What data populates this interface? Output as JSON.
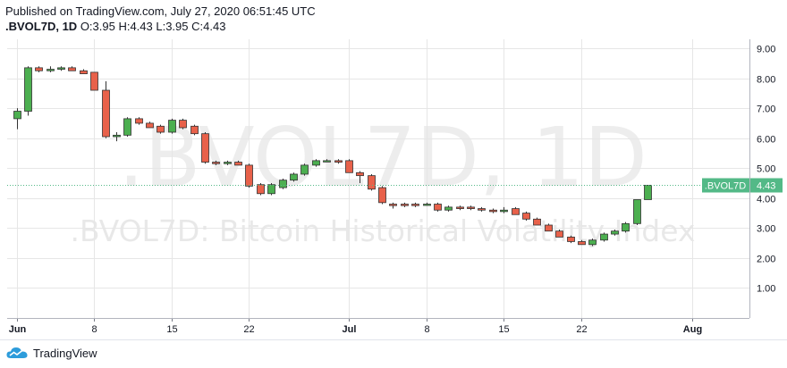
{
  "header": {
    "published": "Published on TradingView.com, July 27, 2020 06:51:45 UTC",
    "symbol": ".BVOL7D, 1D",
    "ohlc": "O:3.95 H:4.43 L:3.95 C:4.43"
  },
  "watermark": {
    "line1": ".BVOL7D, 1D",
    "line2": ".BVOL7D: Bitcoin Historical Volatility Index"
  },
  "footer": {
    "brand": "TradingView"
  },
  "colors": {
    "up": "#53b987",
    "down": "#eb4d5c",
    "up_fill": "#4caf50",
    "down_fill": "#e8614a",
    "last_price_label": "#53b987",
    "grid": "#e6e6e6"
  },
  "chart_data": {
    "type": "candlestick",
    "title": "",
    "symbol": ".BVOL7D",
    "interval": "1D",
    "ylim": [
      0,
      9.3
    ],
    "y_ticks": [
      "1.00",
      "2.00",
      "3.00",
      "4.00",
      "5.00",
      "6.00",
      "7.00",
      "8.00",
      "9.00"
    ],
    "x_ticks": [
      "Jun",
      "8",
      "15",
      "22",
      "Jul",
      "8",
      "15",
      "22",
      "Aug"
    ],
    "last_price": {
      "label": ".BVOL7D",
      "value": "4.43"
    },
    "grid": true,
    "candles": [
      {
        "date": "Jun 1",
        "o": 6.65,
        "h": 7.0,
        "l": 6.3,
        "c": 6.9
      },
      {
        "date": "Jun 2",
        "o": 6.9,
        "h": 8.4,
        "l": 6.75,
        "c": 8.35
      },
      {
        "date": "Jun 3",
        "o": 8.35,
        "h": 8.4,
        "l": 8.2,
        "c": 8.25
      },
      {
        "date": "Jun 4",
        "o": 8.25,
        "h": 8.4,
        "l": 8.2,
        "c": 8.3
      },
      {
        "date": "Jun 5",
        "o": 8.3,
        "h": 8.4,
        "l": 8.25,
        "c": 8.35
      },
      {
        "date": "Jun 6",
        "o": 8.35,
        "h": 8.4,
        "l": 8.25,
        "c": 8.25
      },
      {
        "date": "Jun 7",
        "o": 8.25,
        "h": 8.3,
        "l": 8.15,
        "c": 8.15
      },
      {
        "date": "Jun 8",
        "o": 8.2,
        "h": 8.2,
        "l": 7.6,
        "c": 7.6
      },
      {
        "date": "Jun 9",
        "o": 7.6,
        "h": 7.9,
        "l": 6.0,
        "c": 6.05
      },
      {
        "date": "Jun 10",
        "o": 6.05,
        "h": 6.2,
        "l": 5.9,
        "c": 6.1
      },
      {
        "date": "Jun 11",
        "o": 6.1,
        "h": 6.7,
        "l": 6.05,
        "c": 6.65
      },
      {
        "date": "Jun 12",
        "o": 6.65,
        "h": 6.7,
        "l": 6.45,
        "c": 6.5
      },
      {
        "date": "Jun 13",
        "o": 6.5,
        "h": 6.55,
        "l": 6.35,
        "c": 6.35
      },
      {
        "date": "Jun 14",
        "o": 6.4,
        "h": 6.45,
        "l": 6.15,
        "c": 6.2
      },
      {
        "date": "Jun 15",
        "o": 6.2,
        "h": 6.65,
        "l": 6.15,
        "c": 6.6
      },
      {
        "date": "Jun 16",
        "o": 6.6,
        "h": 6.65,
        "l": 6.3,
        "c": 6.35
      },
      {
        "date": "Jun 17",
        "o": 6.4,
        "h": 6.45,
        "l": 6.1,
        "c": 6.15
      },
      {
        "date": "Jun 18",
        "o": 6.15,
        "h": 6.2,
        "l": 5.15,
        "c": 5.2
      },
      {
        "date": "Jun 19",
        "o": 5.2,
        "h": 5.25,
        "l": 5.1,
        "c": 5.15
      },
      {
        "date": "Jun 20",
        "o": 5.15,
        "h": 5.25,
        "l": 5.1,
        "c": 5.2
      },
      {
        "date": "Jun 21",
        "o": 5.2,
        "h": 5.25,
        "l": 5.1,
        "c": 5.1
      },
      {
        "date": "Jun 22",
        "o": 5.1,
        "h": 5.15,
        "l": 4.35,
        "c": 4.4
      },
      {
        "date": "Jun 23",
        "o": 4.45,
        "h": 4.5,
        "l": 4.1,
        "c": 4.15
      },
      {
        "date": "Jun 24",
        "o": 4.15,
        "h": 4.5,
        "l": 4.1,
        "c": 4.45
      },
      {
        "date": "Jun 25",
        "o": 4.35,
        "h": 4.65,
        "l": 4.3,
        "c": 4.6
      },
      {
        "date": "Jun 26",
        "o": 4.6,
        "h": 4.85,
        "l": 4.55,
        "c": 4.8
      },
      {
        "date": "Jun 27",
        "o": 4.8,
        "h": 5.15,
        "l": 4.75,
        "c": 5.1
      },
      {
        "date": "Jun 28",
        "o": 5.1,
        "h": 5.3,
        "l": 5.05,
        "c": 5.25
      },
      {
        "date": "Jun 29",
        "o": 5.25,
        "h": 5.3,
        "l": 5.2,
        "c": 5.25
      },
      {
        "date": "Jun 30",
        "o": 5.25,
        "h": 5.3,
        "l": 5.15,
        "c": 5.2
      },
      {
        "date": "Jul 1",
        "o": 5.25,
        "h": 5.3,
        "l": 4.85,
        "c": 4.85
      },
      {
        "date": "Jul 2",
        "o": 4.85,
        "h": 4.9,
        "l": 4.5,
        "c": 4.75
      },
      {
        "date": "Jul 3",
        "o": 4.75,
        "h": 4.8,
        "l": 4.25,
        "c": 4.3
      },
      {
        "date": "Jul 4",
        "o": 4.35,
        "h": 4.4,
        "l": 3.8,
        "c": 3.85
      },
      {
        "date": "Jul 5",
        "o": 3.8,
        "h": 3.85,
        "l": 3.65,
        "c": 3.75
      },
      {
        "date": "Jul 6",
        "o": 3.8,
        "h": 3.85,
        "l": 3.7,
        "c": 3.75
      },
      {
        "date": "Jul 7",
        "o": 3.8,
        "h": 3.85,
        "l": 3.7,
        "c": 3.75
      },
      {
        "date": "Jul 8",
        "o": 3.8,
        "h": 3.85,
        "l": 3.75,
        "c": 3.8
      },
      {
        "date": "Jul 9",
        "o": 3.8,
        "h": 3.85,
        "l": 3.55,
        "c": 3.6
      },
      {
        "date": "Jul 10",
        "o": 3.6,
        "h": 3.75,
        "l": 3.55,
        "c": 3.7
      },
      {
        "date": "Jul 11",
        "o": 3.7,
        "h": 3.75,
        "l": 3.6,
        "c": 3.65
      },
      {
        "date": "Jul 12",
        "o": 3.7,
        "h": 3.75,
        "l": 3.6,
        "c": 3.65
      },
      {
        "date": "Jul 13",
        "o": 3.65,
        "h": 3.7,
        "l": 3.55,
        "c": 3.6
      },
      {
        "date": "Jul 14",
        "o": 3.6,
        "h": 3.65,
        "l": 3.5,
        "c": 3.55
      },
      {
        "date": "Jul 15",
        "o": 3.55,
        "h": 3.7,
        "l": 3.5,
        "c": 3.6
      },
      {
        "date": "Jul 16",
        "o": 3.65,
        "h": 3.7,
        "l": 3.45,
        "c": 3.45
      },
      {
        "date": "Jul 17",
        "o": 3.5,
        "h": 3.55,
        "l": 3.25,
        "c": 3.3
      },
      {
        "date": "Jul 18",
        "o": 3.3,
        "h": 3.35,
        "l": 3.1,
        "c": 3.1
      },
      {
        "date": "Jul 19",
        "o": 3.1,
        "h": 3.15,
        "l": 2.9,
        "c": 2.9
      },
      {
        "date": "Jul 20",
        "o": 2.9,
        "h": 2.95,
        "l": 2.7,
        "c": 2.7
      },
      {
        "date": "Jul 21",
        "o": 2.7,
        "h": 2.75,
        "l": 2.5,
        "c": 2.55
      },
      {
        "date": "Jul 22",
        "o": 2.55,
        "h": 2.6,
        "l": 2.45,
        "c": 2.45
      },
      {
        "date": "Jul 23",
        "o": 2.45,
        "h": 2.65,
        "l": 2.4,
        "c": 2.6
      },
      {
        "date": "Jul 24",
        "o": 2.6,
        "h": 2.85,
        "l": 2.55,
        "c": 2.8
      },
      {
        "date": "Jul 25",
        "o": 2.8,
        "h": 2.95,
        "l": 2.75,
        "c": 2.9
      },
      {
        "date": "Jul 26",
        "o": 2.9,
        "h": 3.2,
        "l": 2.85,
        "c": 3.15
      },
      {
        "date": "Jul 27",
        "o": 3.15,
        "h": 3.95,
        "l": 3.1,
        "c": 3.95
      },
      {
        "date": "Jul 28",
        "o": 3.95,
        "h": 4.43,
        "l": 3.95,
        "c": 4.43
      }
    ]
  }
}
